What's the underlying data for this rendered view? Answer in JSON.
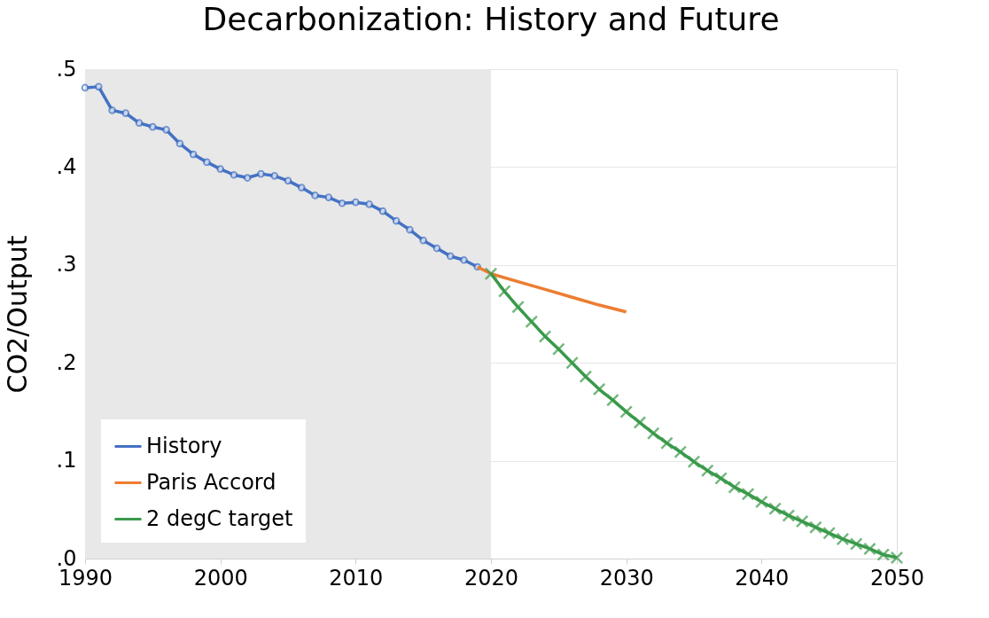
{
  "chart_data": {
    "type": "line",
    "title": "Decarbonization: History and Future",
    "ylabel": "CO2/Output",
    "xlim": [
      1990,
      2050
    ],
    "xticks": [
      1990,
      2000,
      2010,
      2020,
      2030,
      2040,
      2050
    ],
    "ylim": [
      0,
      0.5
    ],
    "yticks": [
      {
        "value": 0,
        "label": ".0"
      },
      {
        "value": 0.1,
        "label": ".1"
      },
      {
        "value": 0.2,
        "label": ".2"
      },
      {
        "value": 0.3,
        "label": ".3"
      },
      {
        "value": 0.4,
        "label": ".4"
      },
      {
        "value": 0.5,
        "label": ".5"
      }
    ],
    "grid": "y",
    "legend": "bottom left",
    "bands": [
      {
        "axis": "x",
        "from": 1990,
        "to": 2020,
        "color": "#e8e8e8"
      }
    ],
    "series": [
      {
        "name": "History",
        "color": "#4472c4",
        "marker": "circle",
        "x": [
          1990,
          1991,
          1992,
          1993,
          1994,
          1995,
          1996,
          1997,
          1998,
          1999,
          2000,
          2001,
          2002,
          2003,
          2004,
          2005,
          2006,
          2007,
          2008,
          2009,
          2010,
          2011,
          2012,
          2013,
          2014,
          2015,
          2016,
          2017,
          2018,
          2019
        ],
        "values": [
          0.481,
          0.482,
          0.458,
          0.455,
          0.445,
          0.441,
          0.438,
          0.424,
          0.413,
          0.405,
          0.398,
          0.392,
          0.389,
          0.393,
          0.391,
          0.386,
          0.379,
          0.371,
          0.369,
          0.363,
          0.364,
          0.362,
          0.355,
          0.345,
          0.336,
          0.325,
          0.317,
          0.309,
          0.305,
          0.298
        ]
      },
      {
        "name": "Paris Accord",
        "color": "#ed7d31",
        "marker": "none",
        "x": [
          2019,
          2020,
          2022,
          2024,
          2026,
          2028,
          2030
        ],
        "values": [
          0.298,
          0.291,
          0.283,
          0.275,
          0.267,
          0.259,
          0.252
        ]
      },
      {
        "name": "2 degC target",
        "color": "#3a9a4a",
        "marker": "cross",
        "x": [
          2020,
          2021,
          2022,
          2023,
          2024,
          2025,
          2026,
          2027,
          2028,
          2029,
          2030,
          2031,
          2032,
          2033,
          2034,
          2035,
          2036,
          2037,
          2038,
          2039,
          2040,
          2041,
          2042,
          2043,
          2044,
          2045,
          2046,
          2047,
          2048,
          2049,
          2050
        ],
        "values": [
          0.291,
          0.273,
          0.257,
          0.242,
          0.227,
          0.214,
          0.2,
          0.186,
          0.173,
          0.162,
          0.15,
          0.139,
          0.128,
          0.118,
          0.109,
          0.099,
          0.09,
          0.082,
          0.073,
          0.066,
          0.058,
          0.051,
          0.044,
          0.038,
          0.032,
          0.026,
          0.02,
          0.015,
          0.01,
          0.004,
          0.001
        ]
      }
    ]
  }
}
